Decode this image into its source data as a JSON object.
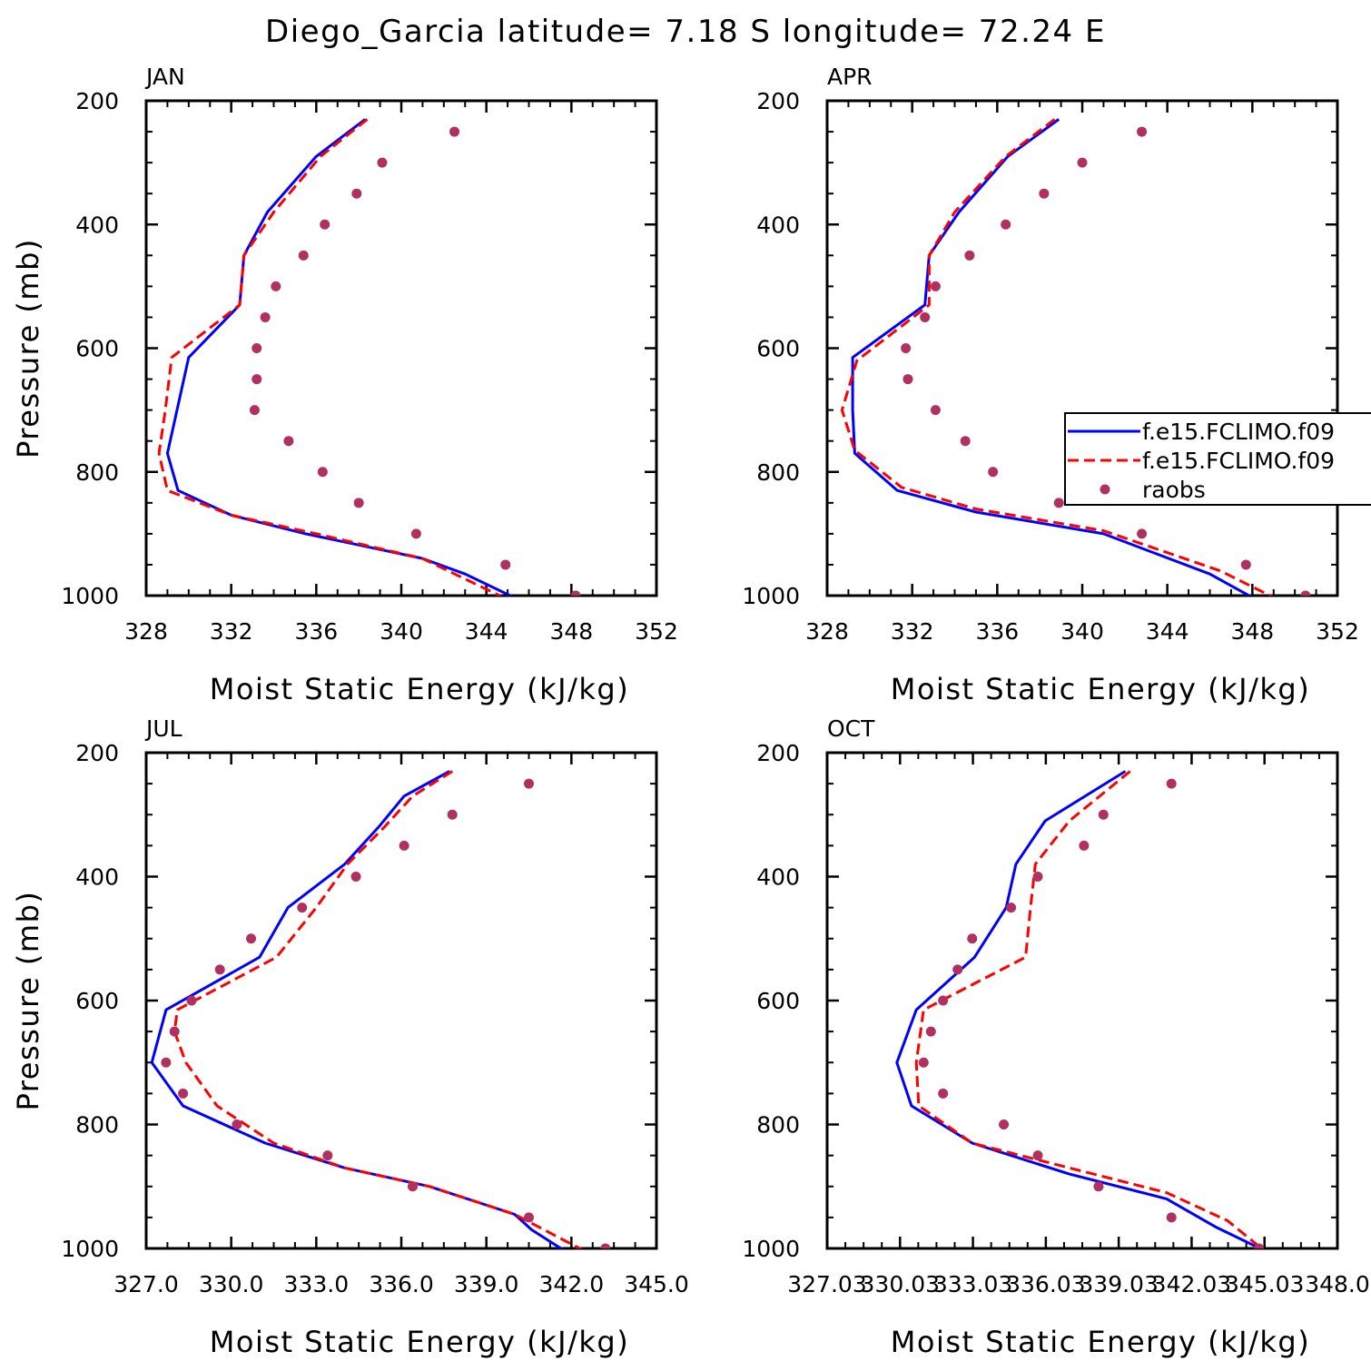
{
  "figure": {
    "title": "Diego_Garcia  latitude= 7.18 S longitude= 72.24 E"
  },
  "legend": {
    "entries": [
      {
        "label": "f.e15.FCLIMO.f09",
        "style": "solid",
        "color": "#0000ff"
      },
      {
        "label": "f.e15.FCLIMO.f09",
        "style": "dashed",
        "color": "#ff0000"
      },
      {
        "label": "raobs",
        "style": "marker",
        "color": "#b03060"
      }
    ]
  },
  "chart_data": [
    {
      "type": "line",
      "panel_label": "JAN",
      "xlabel": "Moist Static Energy (kJ/kg)",
      "ylabel": "Pressure (mb)",
      "xlim": [
        328,
        352
      ],
      "xticks": [
        328,
        332,
        336,
        340,
        344,
        348,
        352
      ],
      "xtick_labels": [
        "328",
        "332",
        "336",
        "340",
        "344",
        "348",
        "352"
      ],
      "ylim": [
        1000,
        200
      ],
      "yticks": [
        200,
        400,
        600,
        800,
        1000
      ],
      "ytick_labels": [
        "200",
        "400",
        "600",
        "800",
        "1000"
      ],
      "series": [
        {
          "name": "f.e15.FCLIMO.f09",
          "style": "solid",
          "color": "#0000ff",
          "x": [
            338.3,
            336.0,
            333.7,
            332.6,
            332.4,
            330.0,
            329.0,
            329.5,
            332.0,
            335.5,
            341.0,
            343.0,
            345.3
          ],
          "y": [
            230,
            290,
            380,
            450,
            530,
            615,
            770,
            830,
            870,
            900,
            940,
            965,
            1003
          ]
        },
        {
          "name": "f.e15.FCLIMO.f09",
          "style": "dashed",
          "color": "#ff0000",
          "x": [
            338.4,
            336.2,
            334.0,
            332.6,
            332.4,
            329.2,
            328.9,
            328.6,
            329.0,
            332.0,
            336.0,
            341.0,
            344.8
          ],
          "y": [
            230,
            290,
            380,
            450,
            530,
            615,
            700,
            770,
            830,
            870,
            900,
            940,
            1003
          ]
        },
        {
          "name": "raobs",
          "style": "marker",
          "color": "#b03060",
          "x": [
            342.5,
            339.1,
            337.9,
            336.4,
            335.4,
            334.1,
            333.6,
            333.2,
            333.2,
            333.1,
            334.7,
            336.3,
            338.0,
            340.7,
            344.9,
            348.2
          ],
          "y": [
            250,
            300,
            350,
            400,
            450,
            500,
            550,
            600,
            650,
            700,
            750,
            800,
            850,
            900,
            950,
            1000
          ]
        }
      ]
    },
    {
      "type": "line",
      "panel_label": "APR",
      "xlabel": "Moist Static Energy (kJ/kg)",
      "ylabel": "",
      "xlim": [
        328,
        352
      ],
      "xticks": [
        328,
        332,
        336,
        340,
        344,
        348,
        352
      ],
      "xtick_labels": [
        "328",
        "332",
        "336",
        "340",
        "344",
        "348",
        "352"
      ],
      "ylim": [
        1000,
        200
      ],
      "yticks": [
        200,
        400,
        600,
        800,
        1000
      ],
      "ytick_labels": [
        "200",
        "400",
        "600",
        "800",
        "1000"
      ],
      "series": [
        {
          "name": "f.e15.FCLIMO.f09",
          "style": "solid",
          "color": "#0000ff",
          "x": [
            338.9,
            336.5,
            334.2,
            332.8,
            332.6,
            329.2,
            329.2,
            329.3,
            331.3,
            335.0,
            341.0,
            346.0,
            348.0
          ],
          "y": [
            230,
            290,
            380,
            450,
            530,
            615,
            700,
            770,
            830,
            865,
            900,
            965,
            1003
          ]
        },
        {
          "name": "f.e15.FCLIMO.f09",
          "style": "dashed",
          "color": "#ff0000",
          "x": [
            338.7,
            336.4,
            334.0,
            332.8,
            332.8,
            329.4,
            328.7,
            329.3,
            331.5,
            335.0,
            341.0,
            346.5,
            349.0
          ],
          "y": [
            230,
            290,
            380,
            450,
            530,
            620,
            700,
            765,
            825,
            860,
            895,
            960,
            1003
          ]
        },
        {
          "name": "raobs",
          "style": "marker",
          "color": "#b03060",
          "x": [
            342.8,
            340.0,
            338.2,
            336.4,
            334.7,
            333.1,
            332.6,
            331.7,
            331.8,
            333.1,
            334.5,
            335.8,
            338.9,
            342.8,
            347.7,
            350.5
          ],
          "y": [
            250,
            300,
            350,
            400,
            450,
            500,
            550,
            600,
            650,
            700,
            750,
            800,
            850,
            900,
            950,
            1000
          ]
        }
      ]
    },
    {
      "type": "line",
      "panel_label": "JUL",
      "xlabel": "Moist Static Energy (kJ/kg)",
      "ylabel": "Pressure (mb)",
      "xlim": [
        327.0,
        345.0
      ],
      "xticks": [
        327,
        330,
        333,
        336,
        339,
        342,
        345
      ],
      "xtick_labels": [
        "327.0",
        "330.0",
        "333.0",
        "336.0",
        "339.0",
        "342.0",
        "345.0"
      ],
      "ylim": [
        1000,
        200
      ],
      "yticks": [
        200,
        400,
        600,
        800,
        1000
      ],
      "ytick_labels": [
        "200",
        "400",
        "600",
        "800",
        "1000"
      ],
      "series": [
        {
          "name": "f.e15.FCLIMO.f09",
          "style": "solid",
          "color": "#0000ff",
          "x": [
            337.7,
            336.1,
            335.2,
            334.0,
            332.0,
            331.0,
            327.7,
            327.2,
            328.3,
            331.2,
            334.0,
            337.0,
            340.0,
            340.6,
            341.8
          ],
          "y": [
            230,
            270,
            320,
            380,
            450,
            530,
            615,
            700,
            770,
            830,
            870,
            900,
            945,
            970,
            1005
          ]
        },
        {
          "name": "f.e15.FCLIMO.f09",
          "style": "dashed",
          "color": "#ff0000",
          "x": [
            337.8,
            336.4,
            335.4,
            334.1,
            333.0,
            331.6,
            328.1,
            328.0,
            328.4,
            329.5,
            331.5,
            334.0,
            337.0,
            340.0,
            342.5
          ],
          "y": [
            230,
            270,
            320,
            380,
            450,
            530,
            615,
            650,
            700,
            770,
            830,
            870,
            900,
            945,
            1005
          ]
        },
        {
          "name": "raobs",
          "style": "marker",
          "color": "#b03060",
          "x": [
            340.5,
            337.8,
            336.1,
            334.4,
            332.5,
            330.7,
            329.6,
            328.6,
            328.0,
            327.7,
            328.3,
            330.2,
            333.4,
            336.4,
            340.5,
            343.2
          ],
          "y": [
            250,
            300,
            350,
            400,
            450,
            500,
            550,
            600,
            650,
            700,
            750,
            800,
            850,
            900,
            950,
            1000
          ]
        }
      ]
    },
    {
      "type": "line",
      "panel_label": "OCT",
      "xlabel": "Moist Static Energy (kJ/kg)",
      "ylabel": "",
      "xlim": [
        327.03,
        348.03
      ],
      "xticks": [
        327.03,
        330.03,
        333.03,
        336.03,
        339.03,
        342.03,
        345.03,
        348.03
      ],
      "xtick_labels": [
        "327.03",
        "330.03",
        "333.03",
        "336.03",
        "339.03",
        "342.03",
        "345.03",
        "348.0"
      ],
      "ylim": [
        1000,
        200
      ],
      "yticks": [
        200,
        400,
        600,
        800,
        1000
      ],
      "ytick_labels": [
        "200",
        "400",
        "600",
        "800",
        "1000"
      ],
      "series": [
        {
          "name": "f.e15.FCLIMO.f09",
          "style": "solid",
          "color": "#0000ff",
          "x": [
            339.3,
            336.0,
            334.8,
            334.4,
            333.1,
            330.7,
            329.9,
            330.5,
            333.0,
            337.0,
            341.0,
            343.0,
            345.0
          ],
          "y": [
            230,
            310,
            380,
            450,
            530,
            615,
            700,
            770,
            830,
            880,
            920,
            965,
            1003
          ]
        },
        {
          "name": "f.e15.FCLIMO.f09",
          "style": "dashed",
          "color": "#ff0000",
          "x": [
            339.5,
            337.0,
            335.6,
            335.4,
            335.2,
            331.0,
            330.7,
            330.8,
            333.0,
            336.0,
            341.0,
            343.5,
            345.0
          ],
          "y": [
            230,
            310,
            380,
            450,
            530,
            615,
            700,
            770,
            830,
            860,
            910,
            955,
            1003
          ]
        },
        {
          "name": "raobs",
          "style": "marker",
          "color": "#b03060",
          "x": [
            341.2,
            338.4,
            337.6,
            335.7,
            334.6,
            333.0,
            332.4,
            331.8,
            331.3,
            331.0,
            331.8,
            334.3,
            335.7,
            338.2,
            341.2,
            344.8
          ],
          "y": [
            250,
            300,
            350,
            400,
            450,
            500,
            550,
            600,
            650,
            700,
            750,
            800,
            850,
            900,
            950,
            1000
          ]
        }
      ]
    }
  ]
}
